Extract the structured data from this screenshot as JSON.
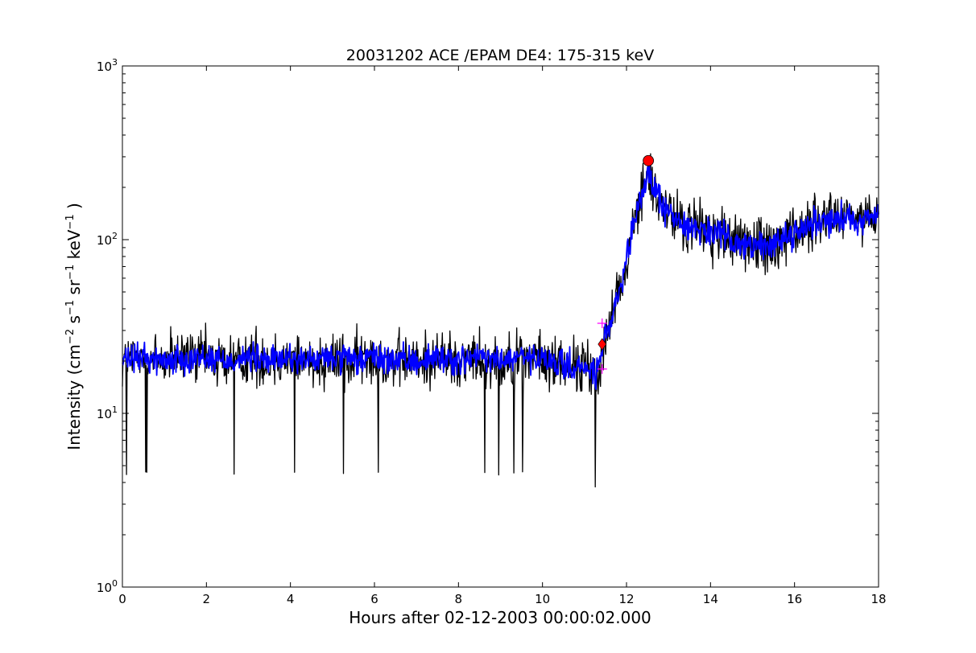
{
  "chart_data": {
    "type": "line",
    "title": "20031202 ACE /EPAM DE4: 175-315 keV",
    "xlabel": "Hours after 02-12-2003 00:00:02.000",
    "ylabel": {
      "prefix": "Intensity (cm",
      "sup1": "−2",
      "mid1": " s",
      "sup2": "−1",
      "mid2": " sr",
      "sup3": "−1",
      "mid3": " keV",
      "sup4": "−1",
      "suffix": " )"
    },
    "xlim": [
      0,
      18
    ],
    "ylim": [
      1,
      1000
    ],
    "yscale": "log",
    "grid": false,
    "x_ticks": [
      {
        "value": 0,
        "label": "0"
      },
      {
        "value": 2,
        "label": "2"
      },
      {
        "value": 4,
        "label": "4"
      },
      {
        "value": 6,
        "label": "6"
      },
      {
        "value": 8,
        "label": "8"
      },
      {
        "value": 10,
        "label": "10"
      },
      {
        "value": 12,
        "label": "12"
      },
      {
        "value": 14,
        "label": "14"
      },
      {
        "value": 16,
        "label": "16"
      },
      {
        "value": 18,
        "label": "18"
      }
    ],
    "y_ticks": [
      {
        "value": 1,
        "base": "10",
        "exp": "0"
      },
      {
        "value": 10,
        "base": "10",
        "exp": "1"
      },
      {
        "value": 100,
        "base": "10",
        "exp": "2"
      },
      {
        "value": 1000,
        "base": "10",
        "exp": "3"
      }
    ],
    "series": [
      {
        "role": "raw",
        "color": "#000000",
        "x": [
          0,
          0.5,
          1,
          1.5,
          2,
          2.5,
          3,
          3.5,
          4,
          4.5,
          5,
          5.5,
          6,
          6.5,
          7,
          7.5,
          8,
          8.5,
          9,
          9.5,
          10,
          10.5,
          11,
          11.3,
          11.5,
          11.7,
          11.9,
          12.1,
          12.3,
          12.5,
          12.7,
          12.9,
          13.2,
          13.5,
          14,
          14.5,
          15,
          15.5,
          16,
          16.5,
          17,
          17.5,
          18
        ],
        "values": [
          20,
          21,
          20,
          21,
          21,
          20,
          21,
          20,
          21,
          20,
          21,
          20,
          21,
          20,
          20,
          21,
          20,
          21,
          20,
          21,
          20,
          19,
          18,
          17,
          28,
          38,
          55,
          100,
          160,
          240,
          190,
          150,
          128,
          120,
          110,
          100,
          90,
          95,
          110,
          125,
          135,
          130,
          138
        ],
        "noise": 0.55
      },
      {
        "role": "smoothed",
        "color": "#0000ff",
        "x": [
          0,
          0.5,
          1,
          1.5,
          2,
          2.5,
          3,
          3.5,
          4,
          4.5,
          5,
          5.5,
          6,
          6.5,
          7,
          7.5,
          8,
          8.5,
          9,
          9.5,
          10,
          10.5,
          11,
          11.3,
          11.5,
          11.7,
          11.9,
          12.1,
          12.3,
          12.5,
          12.7,
          12.9,
          13.2,
          13.5,
          14,
          14.5,
          15,
          15.5,
          16,
          16.5,
          17,
          17.5,
          18
        ],
        "values": [
          20,
          21,
          20,
          21,
          21,
          20,
          21,
          20,
          21,
          20,
          21,
          20,
          21,
          20,
          20,
          21,
          20,
          21,
          20,
          21,
          20,
          19,
          18,
          17,
          28,
          38,
          55,
          100,
          160,
          240,
          190,
          150,
          128,
          120,
          110,
          100,
          90,
          95,
          110,
          125,
          135,
          130,
          138
        ],
        "noise": 0.28
      }
    ],
    "markers": [
      {
        "name": "onset",
        "shape": "diamond",
        "color": "#ff0000",
        "x": 11.42,
        "y": 25
      },
      {
        "name": "peak",
        "shape": "circle",
        "color": "#ff0000",
        "x": 12.52,
        "y": 285
      },
      {
        "name": "onset-upper",
        "shape": "plus",
        "color": "#ff00ff",
        "x": 11.42,
        "y": 33
      },
      {
        "name": "onset-lower",
        "shape": "plus",
        "color": "#ff00ff",
        "x": 11.42,
        "y": 18
      }
    ]
  }
}
